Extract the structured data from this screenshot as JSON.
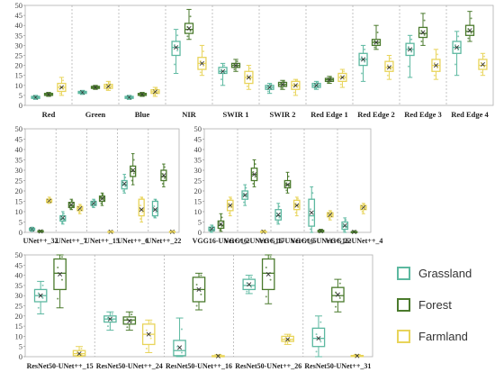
{
  "colors": {
    "Grassland": "#5cb8a0",
    "Forest": "#4a7a2c",
    "Farmland": "#e8d45a"
  },
  "legend": [
    "Grassland",
    "Forest",
    "Farmland"
  ],
  "chart_data": [
    {
      "type": "box",
      "ylim": [
        0,
        50
      ],
      "yticks": [
        0,
        5,
        10,
        15,
        20,
        25,
        30,
        35,
        40,
        45,
        50
      ],
      "categories": [
        "Red",
        "Green",
        "Blue",
        "NIR",
        "SWIR 1",
        "SWIR 2",
        "Red Edge 1",
        "Red Edge 2",
        "Red Edge 3",
        "Red Edge 4"
      ],
      "series": [
        {
          "name": "Grassland",
          "boxes": [
            {
              "min": 3,
              "q1": 3.5,
              "med": 4,
              "q3": 4.5,
              "max": 5,
              "mean": 4
            },
            {
              "min": 5.5,
              "q1": 6,
              "med": 6.5,
              "q3": 7,
              "max": 7.5,
              "mean": 6.5
            },
            {
              "min": 3,
              "q1": 3.5,
              "med": 4,
              "q3": 4.5,
              "max": 5,
              "mean": 4
            },
            {
              "min": 16,
              "q1": 25,
              "med": 29,
              "q3": 32,
              "max": 38,
              "mean": 29
            },
            {
              "min": 10,
              "q1": 16,
              "med": 17,
              "q3": 19,
              "max": 21,
              "mean": 17
            },
            {
              "min": 6,
              "q1": 8,
              "med": 9,
              "q3": 10,
              "max": 11,
              "mean": 9
            },
            {
              "min": 8,
              "q1": 9,
              "med": 10,
              "q3": 11,
              "max": 12,
              "mean": 10
            },
            {
              "min": 12,
              "q1": 20,
              "med": 23,
              "q3": 26,
              "max": 30,
              "mean": 23
            },
            {
              "min": 14,
              "q1": 25,
              "med": 28,
              "q3": 31,
              "max": 35,
              "mean": 28
            },
            {
              "min": 15,
              "q1": 26,
              "med": 29,
              "q3": 32,
              "max": 37,
              "mean": 29
            }
          ]
        },
        {
          "name": "Forest",
          "boxes": [
            {
              "min": 4.5,
              "q1": 5,
              "med": 5.5,
              "q3": 6,
              "max": 6.5,
              "mean": 5.5
            },
            {
              "min": 8,
              "q1": 8.5,
              "med": 9,
              "q3": 9.5,
              "max": 10,
              "mean": 9
            },
            {
              "min": 4.5,
              "q1": 5,
              "med": 5.5,
              "q3": 6,
              "max": 6.5,
              "mean": 5.5
            },
            {
              "min": 33,
              "q1": 36,
              "med": 38,
              "q3": 41,
              "max": 48,
              "mean": 38.5
            },
            {
              "min": 17,
              "q1": 19,
              "med": 20,
              "q3": 21,
              "max": 23,
              "mean": 20
            },
            {
              "min": 8,
              "q1": 9.5,
              "med": 10.5,
              "q3": 11.5,
              "max": 12.5,
              "mean": 10.5
            },
            {
              "min": 11,
              "q1": 12,
              "med": 12.8,
              "q3": 13.5,
              "max": 14.5,
              "mean": 12.8
            },
            {
              "min": 28,
              "q1": 30,
              "med": 31.5,
              "q3": 33,
              "max": 40,
              "mean": 31.5
            },
            {
              "min": 30,
              "q1": 34,
              "med": 36,
              "q3": 39,
              "max": 46,
              "mean": 36.5
            },
            {
              "min": 32,
              "q1": 35,
              "med": 37,
              "q3": 40,
              "max": 47,
              "mean": 37.5
            }
          ]
        },
        {
          "name": "Farmland",
          "boxes": [
            {
              "min": 5,
              "q1": 7,
              "med": 9,
              "q3": 11,
              "max": 14,
              "mean": 9
            },
            {
              "min": 7.5,
              "q1": 8.5,
              "med": 9.5,
              "q3": 10.5,
              "max": 12,
              "mean": 9.5
            },
            {
              "min": 4.5,
              "q1": 6,
              "med": 6.8,
              "q3": 7.8,
              "max": 9,
              "mean": 6.8
            },
            {
              "min": 15,
              "q1": 18,
              "med": 21,
              "q3": 24,
              "max": 30,
              "mean": 21
            },
            {
              "min": 8,
              "q1": 11,
              "med": 14,
              "q3": 17,
              "max": 20,
              "mean": 14
            },
            {
              "min": 5,
              "q1": 8,
              "med": 10,
              "q3": 12,
              "max": 13,
              "mean": 10
            },
            {
              "min": 9,
              "q1": 12,
              "med": 14,
              "q3": 16,
              "max": 18,
              "mean": 14
            },
            {
              "min": 13,
              "q1": 17,
              "med": 19,
              "q3": 22,
              "max": 25,
              "mean": 19
            },
            {
              "min": 13,
              "q1": 17,
              "med": 20,
              "q3": 23,
              "max": 28,
              "mean": 20
            },
            {
              "min": 15,
              "q1": 18,
              "med": 20,
              "q3": 23,
              "max": 26,
              "mean": 20.5
            }
          ]
        }
      ]
    },
    {
      "type": "box",
      "ylim": [
        0,
        50
      ],
      "yticks": [
        0,
        5,
        10,
        15,
        20,
        25,
        30,
        35,
        40,
        45,
        50
      ],
      "categories": [
        "UNet++_32",
        "UNet++_7",
        "UNet++_15",
        "UNet++_6",
        "UNet++_22"
      ],
      "series": [
        {
          "name": "Grassland",
          "boxes": [
            {
              "min": 0.5,
              "q1": 1,
              "med": 1.5,
              "q3": 2,
              "max": 2.5,
              "mean": 1.5
            },
            {
              "min": 4,
              "q1": 5.5,
              "med": 6.5,
              "q3": 8,
              "max": 10,
              "mean": 7
            },
            {
              "min": 12,
              "q1": 13,
              "med": 14,
              "q3": 15,
              "max": 16,
              "mean": 14
            },
            {
              "min": 19,
              "q1": 21,
              "med": 23,
              "q3": 25,
              "max": 28,
              "mean": 23.5
            },
            {
              "min": 7,
              "q1": 8,
              "med": 11,
              "q3": 15,
              "max": 16,
              "mean": 11
            }
          ]
        },
        {
          "name": "Forest",
          "boxes": [
            {
              "min": 0,
              "q1": 0.2,
              "med": 0.5,
              "q3": 0.8,
              "max": 1,
              "mean": 0.5
            },
            {
              "min": 11,
              "q1": 12,
              "med": 13,
              "q3": 14.5,
              "max": 16,
              "mean": 13.3
            },
            {
              "min": 13,
              "q1": 15,
              "med": 16.5,
              "q3": 17.5,
              "max": 19,
              "mean": 16.3
            },
            {
              "min": 23,
              "q1": 27,
              "med": 29.5,
              "q3": 32,
              "max": 38,
              "mean": 30
            },
            {
              "min": 22,
              "q1": 25,
              "med": 27,
              "q3": 30,
              "max": 33,
              "mean": 27.5
            }
          ]
        },
        {
          "name": "Farmland",
          "boxes": [
            {
              "min": 14,
              "q1": 14.5,
              "med": 15.2,
              "q3": 16,
              "max": 17,
              "mean": 15.2
            },
            {
              "min": 9,
              "q1": 10.5,
              "med": 11.5,
              "q3": 12.5,
              "max": 13.5,
              "mean": 11.5
            },
            {
              "min": 0,
              "q1": 0.1,
              "med": 0.3,
              "q3": 0.5,
              "max": 0.8,
              "mean": 0.3
            },
            {
              "min": 5,
              "q1": 8,
              "med": 11,
              "q3": 16,
              "max": 17,
              "mean": 11
            },
            {
              "min": 0,
              "q1": 0.1,
              "med": 0.3,
              "q3": 0.5,
              "max": 0.8,
              "mean": 0.3
            }
          ]
        }
      ]
    },
    {
      "type": "box",
      "ylim": [
        0,
        50
      ],
      "yticks": [
        0,
        5,
        10,
        15,
        20,
        25,
        30,
        35,
        40,
        45,
        50
      ],
      "categories": [
        "VGG16-UNet++_2",
        "VGG16-UNet++_17",
        "VGG16-UNet++_5",
        "VGG16-UNet++_22",
        "VGG16-UNet++_4"
      ],
      "series": [
        {
          "name": "Grassland",
          "boxes": [
            {
              "min": 0,
              "q1": 0.8,
              "med": 1.5,
              "q3": 2.5,
              "max": 3.5,
              "mean": 1.6
            },
            {
              "min": 13,
              "q1": 16,
              "med": 18,
              "q3": 20,
              "max": 23,
              "mean": 18
            },
            {
              "min": 4,
              "q1": 6,
              "med": 8,
              "q3": 11,
              "max": 14,
              "mean": 8.5
            },
            {
              "min": 0,
              "q1": 3,
              "med": 8,
              "q3": 16,
              "max": 22,
              "mean": 9.5
            },
            {
              "min": 0,
              "q1": 1.5,
              "med": 3,
              "q3": 5,
              "max": 7,
              "mean": 3.3
            }
          ]
        },
        {
          "name": "Forest",
          "boxes": [
            {
              "min": 0.5,
              "q1": 2,
              "med": 3.5,
              "q3": 5.5,
              "max": 9,
              "mean": 4
            },
            {
              "min": 22,
              "q1": 25,
              "med": 28,
              "q3": 31,
              "max": 35,
              "mean": 28
            },
            {
              "min": 19,
              "q1": 21.5,
              "med": 23,
              "q3": 25,
              "max": 29,
              "mean": 23
            },
            {
              "min": 0,
              "q1": 0.2,
              "med": 0.5,
              "q3": 1,
              "max": 1.5,
              "mean": 0.6
            },
            {
              "min": 0,
              "q1": 0.1,
              "med": 0.2,
              "q3": 0.4,
              "max": 0.8,
              "mean": 0.2
            }
          ]
        },
        {
          "name": "Farmland",
          "boxes": [
            {
              "min": 8,
              "q1": 10.5,
              "med": 13,
              "q3": 15.5,
              "max": 17,
              "mean": 13
            },
            {
              "min": 0,
              "q1": 0.1,
              "med": 0.3,
              "q3": 0.5,
              "max": 1,
              "mean": 0.3
            },
            {
              "min": 8,
              "q1": 11,
              "med": 13,
              "q3": 15.5,
              "max": 17,
              "mean": 13
            },
            {
              "min": 6,
              "q1": 7.5,
              "med": 8.5,
              "q3": 9.5,
              "max": 10.5,
              "mean": 8.5
            },
            {
              "min": 9,
              "q1": 11,
              "med": 12,
              "q3": 13,
              "max": 14,
              "mean": 12
            }
          ]
        }
      ]
    },
    {
      "type": "box",
      "ylim": [
        0,
        50
      ],
      "yticks": [
        0,
        5,
        10,
        15,
        20,
        25,
        30,
        35,
        40,
        45,
        50
      ],
      "categories": [
        "ResNet50-UNet++_15",
        "ResNet50-UNet++_24",
        "ResNet50-UNet++_16",
        "ResNet50-UNet++_26",
        "ResNet50-UNet++_31"
      ],
      "series": [
        {
          "name": "Grassland",
          "boxes": [
            {
              "min": 21,
              "q1": 27,
              "med": 30,
              "q3": 33,
              "max": 37,
              "mean": 30
            },
            {
              "min": 13,
              "q1": 17,
              "med": 18.5,
              "q3": 20,
              "max": 22,
              "mean": 18.5
            },
            {
              "min": 0,
              "q1": 0.5,
              "med": 3,
              "q3": 8,
              "max": 19,
              "mean": 4.5
            },
            {
              "min": 31,
              "q1": 33,
              "med": 35,
              "q3": 38,
              "max": 40,
              "mean": 35.5
            },
            {
              "min": 0,
              "q1": 5,
              "med": 9,
              "q3": 14,
              "max": 20,
              "mean": 9
            }
          ]
        },
        {
          "name": "Forest",
          "boxes": [
            {
              "min": 24,
              "q1": 33,
              "med": 41,
              "q3": 48,
              "max": 50,
              "mean": 40.5
            },
            {
              "min": 13,
              "q1": 16,
              "med": 18,
              "q3": 19.5,
              "max": 22,
              "mean": 17.5
            },
            {
              "min": 23,
              "q1": 27,
              "med": 33,
              "q3": 39,
              "max": 41,
              "mean": 33
            },
            {
              "min": 26,
              "q1": 33,
              "med": 41,
              "q3": 48,
              "max": 50,
              "mean": 40.5
            },
            {
              "min": 22,
              "q1": 27,
              "med": 30,
              "q3": 34,
              "max": 38,
              "mean": 30.5
            }
          ]
        },
        {
          "name": "Farmland",
          "boxes": [
            {
              "min": 0,
              "q1": 0.5,
              "med": 1.5,
              "q3": 3,
              "max": 5,
              "mean": 1.5
            },
            {
              "min": 2,
              "q1": 6,
              "med": 11,
              "q3": 16,
              "max": 18,
              "mean": 11
            },
            {
              "min": 0,
              "q1": 0.1,
              "med": 0.3,
              "q3": 0.5,
              "max": 1,
              "mean": 0.3
            },
            {
              "min": 6,
              "q1": 7.5,
              "med": 8.5,
              "q3": 10,
              "max": 11,
              "mean": 8.5
            },
            {
              "min": 0,
              "q1": 0.1,
              "med": 0.3,
              "q3": 0.6,
              "max": 1,
              "mean": 0.4
            }
          ]
        }
      ]
    }
  ]
}
